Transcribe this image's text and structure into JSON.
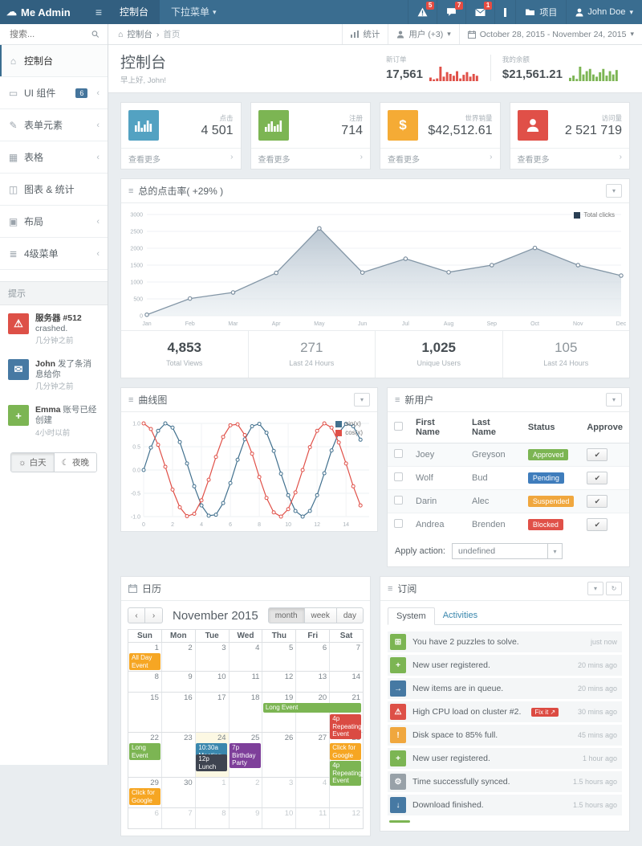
{
  "navbar": {
    "brand": "Me Admin",
    "links": [
      {
        "label": "控制台"
      },
      {
        "label": "下拉菜单"
      }
    ],
    "alerts_badge": "5",
    "chat_badge": "7",
    "mail_badge": "1",
    "project_label": "项目",
    "user": "John Doe"
  },
  "subbar": {
    "breadcrumb": [
      "控制台",
      "首页"
    ],
    "stats_label": "统计",
    "users_label": "用户 (+3)",
    "daterange": "October 28, 2015 - November 24, 2015"
  },
  "sidebar": {
    "search_placeholder": "搜索...",
    "menu": [
      {
        "icon": "⌂",
        "icon_name": "dashboard-icon",
        "label": "控制台",
        "active": true
      },
      {
        "icon": "▭",
        "icon_name": "monitor-icon",
        "label": "UI 组件",
        "badge": "6",
        "chevron": true
      },
      {
        "icon": "✎",
        "icon_name": "pencil-icon",
        "label": "表单元素",
        "chevron": true
      },
      {
        "icon": "▦",
        "icon_name": "table-icon",
        "label": "表格",
        "chevron": true
      },
      {
        "icon": "◫",
        "icon_name": "chart-icon",
        "label": "图表 & 统计"
      },
      {
        "icon": "▣",
        "icon_name": "layout-icon",
        "label": "布局",
        "chevron": true
      },
      {
        "icon": "≣",
        "icon_name": "list-icon",
        "label": "4级菜单",
        "chevron": true
      }
    ],
    "tips_header": "提示",
    "notifications": [
      {
        "icon": "⚠",
        "icon_name": "warning-icon",
        "color": "#dd5047",
        "title_strong": "服务器 #512",
        "title_rest": " crashed.",
        "time": "几分钟之前"
      },
      {
        "icon": "✉",
        "icon_name": "envelope-icon",
        "color": "#4679a3",
        "title_strong": "John",
        "title_rest": " 发了条消息给你",
        "time": "几分钟之前"
      },
      {
        "icon": "+",
        "icon_name": "plus-icon",
        "color": "#7cb553",
        "title_strong": "Emma",
        "title_rest": " 账号已经创建",
        "time": "4小时以前"
      }
    ],
    "day_label": "白天",
    "night_label": "夜晚",
    "day_icon": "☼",
    "night_icon": "☾"
  },
  "header": {
    "title": "控制台",
    "subtitle": "早上好, John!",
    "orders_label": "新订单",
    "orders_value": "17,561",
    "balance_label": "我的余额",
    "balance_value": "$21,561.21"
  },
  "stats": [
    {
      "icon": "bars-a",
      "icon_name": "bar-chart-icon",
      "color": "#53a2c2",
      "label": "点击",
      "value": "4 501",
      "more": "查看更多"
    },
    {
      "icon": "bars-b",
      "icon_name": "bar-chart-icon",
      "color": "#7cb553",
      "label": "注册",
      "value": "714",
      "more": "查看更多"
    },
    {
      "icon": "dollar",
      "icon_name": "dollar-icon",
      "color": "#f5ab35",
      "label": "世界销量",
      "value": "$42,512.61",
      "more": "查看更多"
    },
    {
      "icon": "user",
      "icon_name": "user-icon",
      "color": "#e05048",
      "label": "访问量",
      "value": "2 521 719",
      "more": "查看更多"
    }
  ],
  "main_chart": {
    "title": "总的点击率( +29% )",
    "legend": "Total clicks",
    "legend_color": "#2a3f54",
    "summary": [
      {
        "value": "4,853",
        "label": "Total Views",
        "strong": true
      },
      {
        "value": "271",
        "label": "Last 24 Hours",
        "strong": false
      },
      {
        "value": "1,025",
        "label": "Unique Users",
        "strong": true
      },
      {
        "value": "105",
        "label": "Last 24 Hours",
        "strong": false
      }
    ]
  },
  "line_panel": {
    "title": "曲线图"
  },
  "new_users": {
    "title": "新用户",
    "columns": [
      "First Name",
      "Last Name",
      "Status",
      "Approve"
    ],
    "rows": [
      {
        "first": "Joey",
        "last": "Greyson",
        "status": "Approved",
        "status_color": "#7cb553"
      },
      {
        "first": "Wolf",
        "last": "Bud",
        "status": "Pending",
        "status_color": "#3f7dbc"
      },
      {
        "first": "Darin",
        "last": "Alec",
        "status": "Suspended",
        "status_color": "#f0a73e"
      },
      {
        "first": "Andrea",
        "last": "Brenden",
        "status": "Blocked",
        "status_color": "#e05048"
      }
    ],
    "apply_label": "Apply action:",
    "apply_value": "undefined"
  },
  "calendar": {
    "title": "日历",
    "month_title": "November 2015",
    "views": [
      "month",
      "week",
      "day"
    ],
    "active_view": "month",
    "day_headers": [
      "Sun",
      "Mon",
      "Tue",
      "Wed",
      "Thu",
      "Fri",
      "Sat"
    ],
    "rows": [
      {
        "h": 36,
        "days": [
          {
            "n": 1
          },
          {
            "n": 2
          },
          {
            "n": 3
          },
          {
            "n": 4
          },
          {
            "n": 5
          },
          {
            "n": 6
          },
          {
            "n": 7
          }
        ],
        "events": [
          {
            "col": 0,
            "span": 1,
            "label": "All Day Event",
            "color": "#f6a623"
          }
        ]
      },
      {
        "h": 26,
        "days": [
          {
            "n": 8
          },
          {
            "n": 9
          },
          {
            "n": 10
          },
          {
            "n": 11
          },
          {
            "n": 12
          },
          {
            "n": 13
          },
          {
            "n": 14
          }
        ]
      },
      {
        "h": 50,
        "days": [
          {
            "n": 15
          },
          {
            "n": 16
          },
          {
            "n": 17
          },
          {
            "n": 18
          },
          {
            "n": 19
          },
          {
            "n": 20
          },
          {
            "n": 21
          }
        ],
        "events": [
          {
            "col": 4,
            "span": 3,
            "label": "Long Event",
            "color": "#7cb553"
          },
          {
            "col": 6,
            "span": 1,
            "top": 27,
            "label": "4p Repeating Event",
            "color": "#da4b43"
          }
        ]
      },
      {
        "h": 56,
        "days": [
          {
            "n": 22
          },
          {
            "n": 23
          },
          {
            "n": 24,
            "today": true
          },
          {
            "n": 25
          },
          {
            "n": 26
          },
          {
            "n": 27
          },
          {
            "n": 28
          }
        ],
        "events": [
          {
            "col": 0,
            "span": 1,
            "label": "Long Event",
            "color": "#7cb553"
          },
          {
            "col": 2,
            "span": 1,
            "label": "10:30a Meeting",
            "color": "#3a87ad"
          },
          {
            "col": 2,
            "span": 1,
            "top": 27,
            "label": "12p Lunch",
            "color": "#3e4450"
          },
          {
            "col": 3,
            "span": 1,
            "label": "7p Birthday Party",
            "color": "#7e3f9a"
          },
          {
            "col": 6,
            "span": 1,
            "label": "Click for Google",
            "color": "#f6a623"
          },
          {
            "col": 6,
            "span": 1,
            "top": 35,
            "label": "4p Repeating Event",
            "color": "#7cb553"
          }
        ]
      },
      {
        "h": 38,
        "days": [
          {
            "n": 29
          },
          {
            "n": 30
          },
          {
            "n": 1,
            "muted": true
          },
          {
            "n": 2,
            "muted": true
          },
          {
            "n": 3,
            "muted": true
          },
          {
            "n": 4,
            "muted": true
          },
          {
            "n": 5,
            "muted": true
          }
        ],
        "events": [
          {
            "col": 0,
            "span": 1,
            "label": "Click for Google",
            "color": "#f6a623"
          }
        ]
      },
      {
        "h": 26,
        "days": [
          {
            "n": 6,
            "muted": true
          },
          {
            "n": 7,
            "muted": true
          },
          {
            "n": 8,
            "muted": true
          },
          {
            "n": 9,
            "muted": true
          },
          {
            "n": 10,
            "muted": true
          },
          {
            "n": 11,
            "muted": true
          },
          {
            "n": 12,
            "muted": true
          }
        ]
      }
    ]
  },
  "feed": {
    "title": "订阅",
    "tabs": [
      "System",
      "Activities"
    ],
    "items": [
      {
        "icon": "⊞",
        "icon_name": "puzzle-icon",
        "color": "#7cb553",
        "text": "You have 2 puzzles to solve.",
        "time": "just now"
      },
      {
        "icon": "+",
        "icon_name": "plus-icon",
        "color": "#7cb553",
        "text": "New user registered.",
        "time": "20 mins ago"
      },
      {
        "icon": "→",
        "icon_name": "queue-icon",
        "color": "#4679a3",
        "text": "New items are in queue.",
        "time": "20 mins ago"
      },
      {
        "icon": "⚠",
        "icon_name": "warning-icon",
        "color": "#dd5047",
        "text": "High CPU load on cluster #2.",
        "badge": "Fix it ↗",
        "time": "30 mins ago"
      },
      {
        "icon": "!",
        "icon_name": "exclamation-icon",
        "color": "#f0a73e",
        "text": "Disk space to 85% full.",
        "time": "45 mins ago"
      },
      {
        "icon": "+",
        "icon_name": "plus-icon",
        "color": "#7cb553",
        "text": "New user registered.",
        "time": "1 hour ago"
      },
      {
        "icon": "⚙",
        "icon_name": "gear-icon",
        "color": "#98a1a8",
        "text": "Time successfully synced.",
        "time": "1.5 hours ago"
      },
      {
        "icon": "↓",
        "icon_name": "download-icon",
        "color": "#4679a3",
        "text": "Download finished.",
        "time": "1.5 hours ago"
      }
    ]
  },
  "chart_data": [
    {
      "type": "area",
      "title": "总的点击率( +29% )",
      "x": [
        "Jan",
        "Feb",
        "Mar",
        "Apr",
        "May",
        "Jun",
        "Jul",
        "Aug",
        "Sep",
        "Oct",
        "Nov",
        "Dec"
      ],
      "series": [
        {
          "name": "Total clicks",
          "color": "#8396a6",
          "values": [
            30,
            510,
            690,
            1270,
            2590,
            1280,
            1690,
            1290,
            1500,
            2010,
            1500,
            1190
          ]
        }
      ],
      "ylim": [
        0,
        3000
      ],
      "yticks": [
        0,
        500,
        1000,
        1500,
        2000,
        2500,
        3000
      ],
      "legend_position": "top-right",
      "grid": true
    },
    {
      "type": "line",
      "title": "曲线图",
      "x_start": 0,
      "x_step": 0.5,
      "xticks": [
        0,
        2,
        4,
        6,
        8,
        10,
        12,
        14
      ],
      "yticks": [
        -1,
        -0.5,
        0,
        0.5,
        1
      ],
      "ylim": [
        -1,
        1
      ],
      "grid": true,
      "legend_position": "top-right",
      "series": [
        {
          "name": "sin(x)",
          "color": "#41708e",
          "values": [
            0,
            0.48,
            0.84,
            1,
            0.91,
            0.6,
            0.14,
            -0.35,
            -0.76,
            -0.98,
            -0.96,
            -0.71,
            -0.28,
            0.22,
            0.66,
            0.94,
            0.99,
            0.8,
            0.41,
            -0.08,
            -0.54,
            -0.88,
            -1,
            -0.88,
            -0.54,
            -0.07,
            0.42,
            0.8,
            0.99,
            0.94,
            0.65
          ]
        },
        {
          "name": "cos(x)",
          "color": "#e05048",
          "values": [
            1,
            0.88,
            0.54,
            0.07,
            -0.42,
            -0.8,
            -0.99,
            -0.94,
            -0.65,
            -0.21,
            0.28,
            0.71,
            0.96,
            0.98,
            0.75,
            0.35,
            -0.15,
            -0.6,
            -0.91,
            -1,
            -0.84,
            -0.48,
            0,
            0.49,
            0.84,
            1,
            0.91,
            0.59,
            0.14,
            -0.35,
            -0.76
          ]
        }
      ]
    },
    {
      "type": "sparkline-bar",
      "name": "orders",
      "color": "#e05048",
      "values": [
        4,
        2,
        3,
        16,
        5,
        10,
        8,
        6,
        11,
        3,
        7,
        10,
        5,
        8,
        6
      ]
    },
    {
      "type": "sparkline-bar",
      "name": "balance",
      "color": "#7cb553",
      "values": [
        3,
        5,
        2,
        13,
        6,
        9,
        11,
        6,
        4,
        8,
        11,
        5,
        9,
        6,
        10
      ]
    }
  ]
}
